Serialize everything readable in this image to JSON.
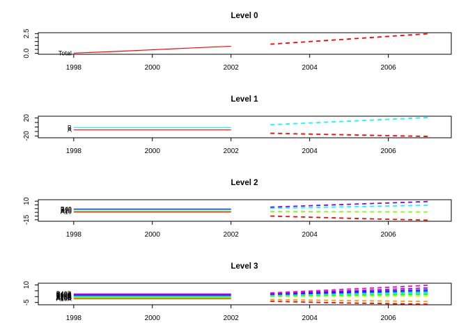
{
  "figure": {
    "background": "#FFFFFF",
    "frame_color": "#000000",
    "tick_color": "#000000",
    "history_style": "solid",
    "forecast_style": "dashed"
  },
  "chart_data": [
    {
      "type": "line",
      "title": "Level 0",
      "xlim": [
        1997.1,
        2007.6
      ],
      "xticks": [
        1998,
        2000,
        2002,
        2004,
        2006
      ],
      "ylim": [
        -0.12,
        2.62
      ],
      "yticks": [
        0,
        0.5,
        1,
        1.5,
        2,
        2.5
      ],
      "ytick_labels": [
        {
          "value": 0,
          "label": "0.0"
        },
        {
          "value": 2.5,
          "label": "2.5"
        }
      ],
      "history_x": [
        1998,
        1999,
        2000,
        2001,
        2002
      ],
      "forecast_x": [
        2003,
        2004,
        2005,
        2006,
        2007
      ],
      "series": [
        {
          "name": "Total",
          "color": "#FF0000",
          "history": [
            0.03,
            0.22,
            0.45,
            0.68,
            0.9
          ],
          "forecast": [
            1.16,
            1.49,
            1.82,
            2.15,
            2.48
          ]
        }
      ]
    },
    {
      "type": "line",
      "title": "Level 1",
      "xlim": [
        1997.1,
        2007.6
      ],
      "xticks": [
        1998,
        2000,
        2002,
        2004,
        2006
      ],
      "ylim": [
        -24,
        24
      ],
      "yticks": [
        -20,
        -10,
        0,
        10,
        20
      ],
      "ytick_labels": [
        {
          "value": -20,
          "label": "-20"
        },
        {
          "value": 20,
          "label": "20"
        }
      ],
      "history_x": [
        1998,
        1999,
        2000,
        2001,
        2002
      ],
      "forecast_x": [
        2003,
        2004,
        2005,
        2006,
        2007
      ],
      "series": [
        {
          "name": "A",
          "color": "#FF0000",
          "history": [
            -6.5,
            -6.5,
            -6.5,
            -6.5,
            -6.5
          ],
          "forecast": [
            -14,
            -15.8,
            -17.5,
            -19.3,
            -21
          ]
        },
        {
          "name": "B",
          "color": "#00FFFF",
          "history": [
            -1.5,
            -1.5,
            -1.5,
            -1.5,
            -1.5
          ],
          "forecast": [
            5,
            9,
            13,
            17,
            21
          ]
        }
      ]
    },
    {
      "type": "line",
      "title": "Level 2",
      "xlim": [
        1997.1,
        2007.6
      ],
      "xticks": [
        1998,
        2000,
        2002,
        2004,
        2006
      ],
      "ylim": [
        -17,
        12
      ],
      "yticks": [
        -15,
        -10,
        -5,
        0,
        5,
        10
      ],
      "ytick_labels": [
        {
          "value": -15,
          "label": "-15"
        },
        {
          "value": 10,
          "label": "10"
        }
      ],
      "history_x": [
        1998,
        1999,
        2000,
        2001,
        2002
      ],
      "forecast_x": [
        2003,
        2004,
        2005,
        2006,
        2007
      ],
      "series": [
        {
          "name": "A10",
          "color": "#FF0000",
          "history": [
            -4.5,
            -4.5,
            -4.5,
            -4.5,
            -4.5
          ],
          "forecast": [
            -10,
            -11.5,
            -13,
            -14.3,
            -15.5
          ]
        },
        {
          "name": "A20",
          "color": "#80FF00",
          "history": [
            -3,
            -3,
            -3,
            -3,
            -3
          ],
          "forecast": [
            -4,
            -4.1,
            -4.2,
            -4.3,
            -4.5
          ]
        },
        {
          "name": "B30",
          "color": "#00FFFF",
          "history": [
            -1.5,
            -1.5,
            -1.5,
            -1.5,
            -1.5
          ],
          "forecast": [
            0.5,
            1.5,
            2.5,
            3.5,
            4.5
          ]
        },
        {
          "name": "B40",
          "color": "#8000FF",
          "history": [
            -0.5,
            -0.5,
            -0.5,
            -0.5,
            -0.5
          ],
          "forecast": [
            2,
            3.9,
            5.8,
            7.6,
            9.5
          ]
        }
      ]
    },
    {
      "type": "line",
      "title": "Level 3",
      "xlim": [
        1997.1,
        2007.6
      ],
      "xticks": [
        1998,
        2000,
        2002,
        2004,
        2006
      ],
      "ylim": [
        -7,
        11.5
      ],
      "yticks": [
        -5,
        0,
        5,
        10
      ],
      "ytick_labels": [
        {
          "value": -5,
          "label": "-5"
        },
        {
          "value": 10,
          "label": "10"
        }
      ],
      "history_x": [
        1998,
        1999,
        2000,
        2001,
        2002
      ],
      "forecast_x": [
        2003,
        2004,
        2005,
        2006,
        2007
      ],
      "series": [
        {
          "name": "A10A",
          "color": "#FF0000",
          "history": [
            -1.9,
            -1.9,
            -1.9,
            -1.9,
            -1.9
          ],
          "forecast": [
            -4,
            -4.8,
            -5.5,
            -6,
            -6.5
          ]
        },
        {
          "name": "A10B",
          "color": "#FF9900",
          "history": [
            -1.4,
            -1.4,
            -1.4,
            -1.4,
            -1.4
          ],
          "forecast": [
            -2.5,
            -3,
            -3.4,
            -3.8,
            -4.2
          ]
        },
        {
          "name": "A10C",
          "color": "#CCFF00",
          "history": [
            -0.9,
            -0.9,
            -0.9,
            -0.9,
            -0.9
          ],
          "forecast": [
            0.1,
            0.2,
            0.3,
            0.4,
            0.5
          ]
        },
        {
          "name": "A20A",
          "color": "#33FF00",
          "history": [
            -0.5,
            -0.5,
            -0.5,
            -0.5,
            -0.5
          ],
          "forecast": [
            0.6,
            0.9,
            1.2,
            1.5,
            1.8
          ]
        },
        {
          "name": "A20B",
          "color": "#00FF66",
          "history": [
            0,
            0,
            0,
            0,
            0
          ],
          "forecast": [
            1.0,
            1.4,
            1.8,
            2.2,
            2.6
          ]
        },
        {
          "name": "B30A",
          "color": "#00FFFF",
          "history": [
            0.5,
            0.5,
            0.5,
            0.5,
            0.5
          ],
          "forecast": [
            1.4,
            1.9,
            2.5,
            3.0,
            3.5
          ]
        },
        {
          "name": "B30B",
          "color": "#0066FF",
          "history": [
            1.0,
            1.0,
            1.0,
            1.0,
            1.0
          ],
          "forecast": [
            1.8,
            2.5,
            3.2,
            3.9,
            4.6
          ]
        },
        {
          "name": "B30C",
          "color": "#3300FF",
          "history": [
            1.4,
            1.4,
            1.4,
            1.4,
            1.4
          ],
          "forecast": [
            2.2,
            3.1,
            4.0,
            4.9,
            5.8
          ]
        },
        {
          "name": "B40A",
          "color": "#9900FF",
          "history": [
            1.9,
            1.9,
            1.9,
            1.9,
            1.9
          ],
          "forecast": [
            2.6,
            3.8,
            5.0,
            6.2,
            7.4
          ]
        },
        {
          "name": "B40B",
          "color": "#FF00CC",
          "history": [
            2.4,
            2.4,
            2.4,
            2.4,
            2.4
          ],
          "forecast": [
            3.2,
            4.8,
            6.4,
            8.0,
            9.7
          ]
        }
      ]
    }
  ]
}
